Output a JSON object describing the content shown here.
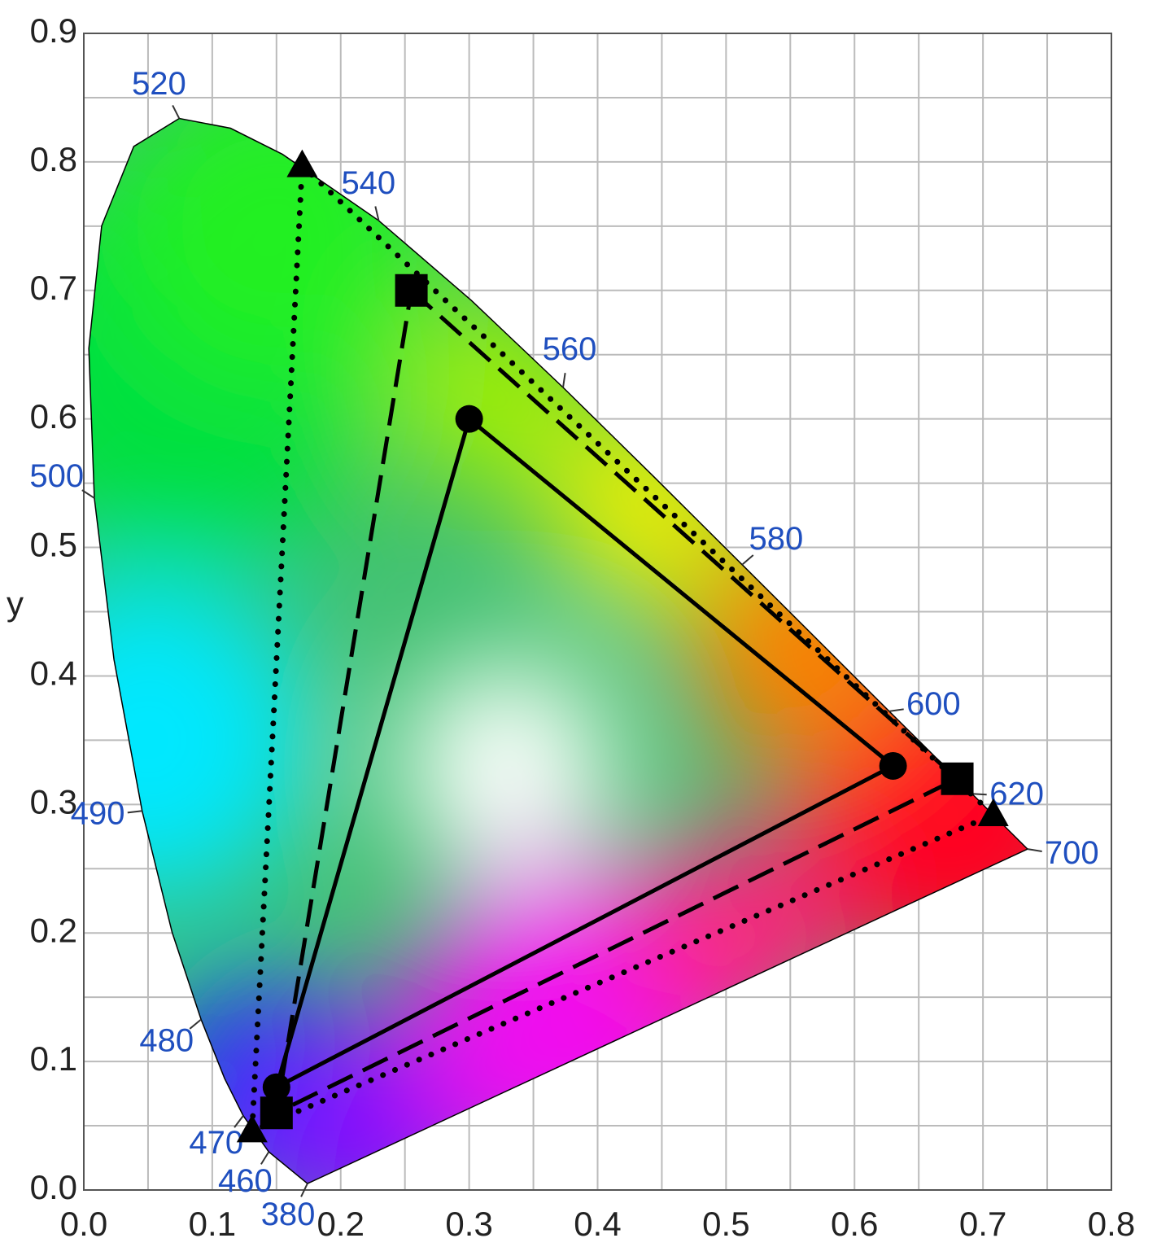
{
  "chart_data": {
    "type": "chromaticity",
    "y_label": "y",
    "xlim": [
      0,
      0.8
    ],
    "ylim": [
      0,
      0.9
    ],
    "xticks": [
      {
        "value": 0,
        "label": "0.0"
      },
      0.1,
      0.2,
      0.3,
      0.4,
      0.5,
      0.6,
      0.7,
      0.8
    ],
    "yticks": [
      {
        "value": 0,
        "label": "0.0"
      },
      0.1,
      0.2,
      0.3,
      0.4,
      0.5,
      0.6,
      0.7,
      0.8,
      0.9
    ],
    "grid": true,
    "label_color": "#1f4fbf",
    "locus": {
      "x": [
        0.1741,
        0.144,
        0.1241,
        0.1096,
        0.0913,
        0.0687,
        0.0454,
        0.0235,
        0.0082,
        0.0039,
        0.0139,
        0.0389,
        0.0743,
        0.1142,
        0.1547,
        0.2296,
        0.3016,
        0.3731,
        0.4441,
        0.5125,
        0.5752,
        0.627,
        0.6658,
        0.6915,
        0.719,
        0.7347
      ],
      "y": [
        0.005,
        0.0297,
        0.0578,
        0.0868,
        0.1327,
        0.2007,
        0.295,
        0.4127,
        0.5384,
        0.6548,
        0.7502,
        0.812,
        0.8338,
        0.8262,
        0.8059,
        0.7543,
        0.6923,
        0.6245,
        0.5547,
        0.4866,
        0.4242,
        0.3725,
        0.334,
        0.3083,
        0.2809,
        0.2653
      ],
      "wavelengths": [
        380,
        460,
        470,
        null,
        480,
        null,
        490,
        null,
        500,
        null,
        null,
        null,
        520,
        null,
        null,
        540,
        null,
        560,
        null,
        580,
        null,
        600,
        null,
        620,
        null,
        700
      ]
    },
    "series": [
      {
        "marker": "circle",
        "dash": "solid",
        "color": "#000000",
        "x": [
          0.3,
          0.63,
          0.15
        ],
        "y": [
          0.6,
          0.33,
          0.08
        ]
      },
      {
        "marker": "square",
        "dash": "dashed",
        "color": "#000000",
        "x": [
          0.255,
          0.68,
          0.15
        ],
        "y": [
          0.7,
          0.32,
          0.06
        ]
      },
      {
        "marker": "triangle",
        "dash": "dotted",
        "color": "#000000",
        "x": [
          0.17,
          0.708,
          0.131
        ],
        "y": [
          0.797,
          0.292,
          0.046
        ]
      }
    ]
  }
}
